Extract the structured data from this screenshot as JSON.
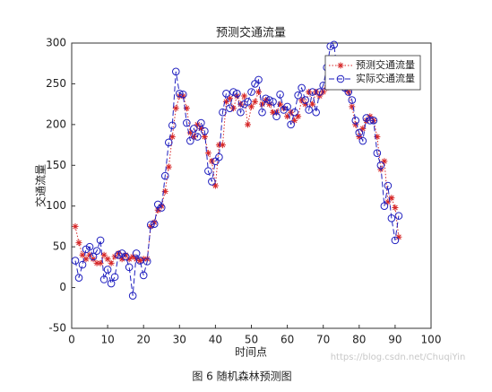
{
  "chart_data": {
    "type": "line",
    "title": "预测交通流量",
    "x_label": "时间点",
    "y_label": "交通流量",
    "caption": "图 6 随机森林预测图",
    "watermark": "https://blog.csdn.net/ChuqiYin",
    "x": [
      1,
      2,
      3,
      4,
      5,
      6,
      7,
      8,
      9,
      10,
      11,
      12,
      13,
      14,
      15,
      16,
      17,
      18,
      19,
      20,
      21,
      22,
      23,
      24,
      25,
      26,
      27,
      28,
      29,
      30,
      31,
      32,
      33,
      34,
      35,
      36,
      37,
      38,
      39,
      40,
      41,
      42,
      43,
      44,
      45,
      46,
      47,
      48,
      49,
      50,
      51,
      52,
      53,
      54,
      55,
      56,
      57,
      58,
      59,
      60,
      61,
      62,
      63,
      64,
      65,
      66,
      67,
      68,
      69,
      70,
      71,
      72,
      73,
      74,
      75,
      76,
      77,
      78,
      79,
      80,
      81,
      82,
      83,
      84,
      85,
      86,
      87,
      88,
      89,
      90,
      91
    ],
    "xlim": [
      0,
      100
    ],
    "xticks": [
      0,
      10,
      20,
      30,
      40,
      50,
      60,
      70,
      80,
      90,
      100
    ],
    "ylim": [
      -50,
      300
    ],
    "yticks": [
      -50,
      0,
      50,
      100,
      150,
      200,
      250,
      300
    ],
    "legend": "upper right",
    "series": [
      {
        "name": "预测交通流量",
        "color": "#d62728",
        "line_style": "dotted",
        "marker": "star",
        "values": [
          75,
          55,
          40,
          35,
          40,
          35,
          30,
          30,
          40,
          35,
          30,
          38,
          42,
          35,
          40,
          35,
          38,
          35,
          33,
          35,
          35,
          75,
          80,
          95,
          100,
          118,
          148,
          185,
          220,
          235,
          235,
          220,
          190,
          185,
          200,
          195,
          185,
          165,
          155,
          125,
          175,
          175,
          228,
          232,
          220,
          235,
          225,
          235,
          200,
          222,
          228,
          240,
          225,
          230,
          225,
          215,
          215,
          225,
          220,
          210,
          215,
          205,
          210,
          230,
          225,
          240,
          225,
          240,
          235,
          240,
          245,
          250,
          250,
          250,
          248,
          245,
          240,
          222,
          200,
          185,
          195,
          205,
          210,
          205,
          185,
          145,
          155,
          105,
          110,
          98,
          62
        ]
      },
      {
        "name": "实际交通流量",
        "color": "#1f1fbf",
        "line_style": "dashed",
        "marker": "circle",
        "values": [
          33,
          12,
          28,
          47,
          50,
          38,
          45,
          58,
          10,
          22,
          5,
          13,
          40,
          42,
          38,
          25,
          -10,
          42,
          33,
          15,
          32,
          77,
          78,
          102,
          98,
          137,
          178,
          199,
          265,
          238,
          237,
          202,
          180,
          195,
          185,
          202,
          192,
          143,
          130,
          155,
          160,
          215,
          238,
          220,
          240,
          238,
          215,
          225,
          228,
          240,
          250,
          255,
          215,
          232,
          230,
          228,
          210,
          237,
          218,
          222,
          200,
          215,
          236,
          245,
          230,
          218,
          240,
          215,
          240,
          248,
          270,
          296,
          298,
          260,
          248,
          245,
          240,
          230,
          205,
          190,
          180,
          208,
          205,
          205,
          165,
          150,
          100,
          125,
          85,
          58,
          88
        ]
      }
    ]
  }
}
